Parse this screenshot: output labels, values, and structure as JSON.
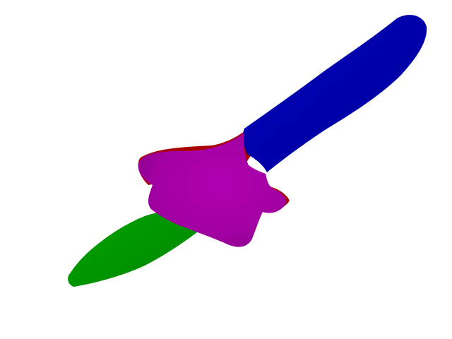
{
  "scene": {
    "background": "#ffffff",
    "segments": [
      {
        "name": "blade",
        "color": "#0000a8"
      },
      {
        "name": "hilt",
        "color": "#aa00aa"
      },
      {
        "name": "handle",
        "color": "#009900"
      },
      {
        "name": "guard-edge",
        "color": "#a80000"
      }
    ]
  }
}
